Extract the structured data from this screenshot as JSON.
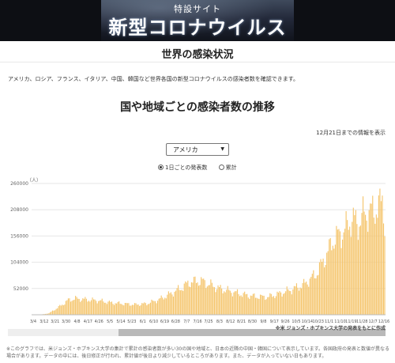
{
  "banner": {
    "subtitle": "特設サイト",
    "title": "新型コロナウイルス"
  },
  "section": {
    "heading": "世界の感染状況",
    "intro": "アメリカ、ロシア、フランス、イタリア、中国、韓国など世界各国の新型コロナウイルスの感染者数を確認できます。"
  },
  "chart_heading": "国や地域ごとの感染者数の推移",
  "date_note": "12月21日までの情報を表示",
  "country_select": {
    "value": "アメリカ"
  },
  "mode_options": [
    {
      "label": "1日ごとの発表数",
      "selected": true
    },
    {
      "label": "累計",
      "selected": false
    }
  ],
  "source_note": "※米 ジョンズ・ホプキンス大学の発表をもとに作成",
  "footnote": "※このグラフでは、米ジョンズ・ホプキンス大学の集計で累計の感染者数が多い30の国や地域と、日本の近隣の中国・韓国について表示しています。各国政府の発表と数値が異なる場合があります。データの中には、後日修正が行われ、累計値が後日より減少しているところがあります。また、データが入っていない日もあります。",
  "colors": {
    "bar": "#f5c66f",
    "grid": "#e6e6e6",
    "accent": "#1f1f1f"
  },
  "chart_data": {
    "type": "bar",
    "title": "",
    "xlabel": "",
    "ylabel": "（人）",
    "ylim": [
      0,
      260000
    ],
    "yticks": [
      52000,
      104000,
      156000,
      208000,
      260000
    ],
    "x_start": "3/4",
    "x_end": "12/21",
    "xtick_labels": [
      "3/4",
      "3/12",
      "3/21",
      "3/30",
      "4/8",
      "4/17",
      "4/26",
      "5/5",
      "5/14",
      "5/23",
      "6/1",
      "6/10",
      "6/19",
      "6/28",
      "7/7",
      "7/16",
      "7/25",
      "8/3",
      "8/12",
      "8/21",
      "8/30",
      "9/8",
      "9/17",
      "9/26",
      "10/5",
      "10/14",
      "10/23",
      "11/1",
      "11/10",
      "11/19",
      "11/28",
      "12/7",
      "12/16"
    ],
    "knots": [
      [
        0,
        0
      ],
      [
        8,
        500
      ],
      [
        14,
        3000
      ],
      [
        20,
        12000
      ],
      [
        25,
        20000
      ],
      [
        30,
        29000
      ],
      [
        36,
        32000
      ],
      [
        45,
        30000
      ],
      [
        55,
        28000
      ],
      [
        65,
        24000
      ],
      [
        75,
        22000
      ],
      [
        85,
        20000
      ],
      [
        95,
        22000
      ],
      [
        105,
        30000
      ],
      [
        115,
        42000
      ],
      [
        125,
        55000
      ],
      [
        130,
        64000
      ],
      [
        135,
        66000
      ],
      [
        140,
        67000
      ],
      [
        145,
        62000
      ],
      [
        155,
        52000
      ],
      [
        165,
        46000
      ],
      [
        175,
        40000
      ],
      [
        185,
        36000
      ],
      [
        195,
        35000
      ],
      [
        205,
        42000
      ],
      [
        215,
        50000
      ],
      [
        225,
        60000
      ],
      [
        235,
        80000
      ],
      [
        242,
        110000
      ],
      [
        250,
        150000
      ],
      [
        258,
        165000
      ],
      [
        265,
        190000
      ],
      [
        270,
        180000
      ],
      [
        275,
        200000
      ],
      [
        282,
        205000
      ],
      [
        288,
        215000
      ],
      [
        290,
        230000
      ],
      [
        292,
        185000
      ]
    ]
  }
}
